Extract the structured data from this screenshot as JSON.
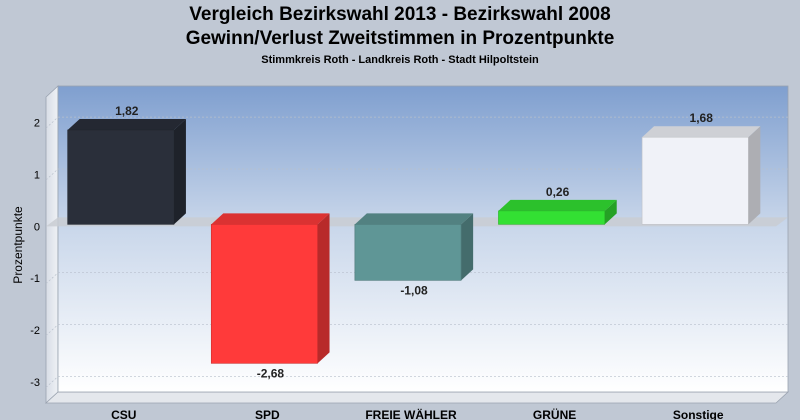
{
  "chart_data": {
    "type": "bar",
    "title": "Vergleich Bezirkswahl 2013 - Bezirkswahl 2008",
    "subtitle_line": "Gewinn/Verlust Zweitstimmen in Prozentpunkte",
    "subtitle": "Stimmkreis Roth - Landkreis Roth - Stadt Hilpoltstein",
    "ylabel": "Prozentpunkte",
    "xlabel": "",
    "ylim": [
      -3.3,
      2.6
    ],
    "yticks": [
      -3,
      -2,
      -1,
      0,
      1,
      2
    ],
    "ytick_labels": [
      "-3",
      "-2",
      "-1",
      "0",
      "1",
      "2"
    ],
    "categories": [
      "CSU",
      "SPD",
      "FREIE WÄHLER",
      "GRÜNE",
      "Sonstige"
    ],
    "values": [
      1.82,
      -2.68,
      -1.08,
      0.26,
      1.68
    ],
    "value_labels": [
      "1,82",
      "-2,68",
      "-1,08",
      "0,26",
      "1,68"
    ],
    "colors": [
      "#2a2f3a",
      "#ff3a3a",
      "#5f9696",
      "#33e033",
      "#f0f2f8"
    ],
    "grid": true,
    "legend": "none"
  }
}
